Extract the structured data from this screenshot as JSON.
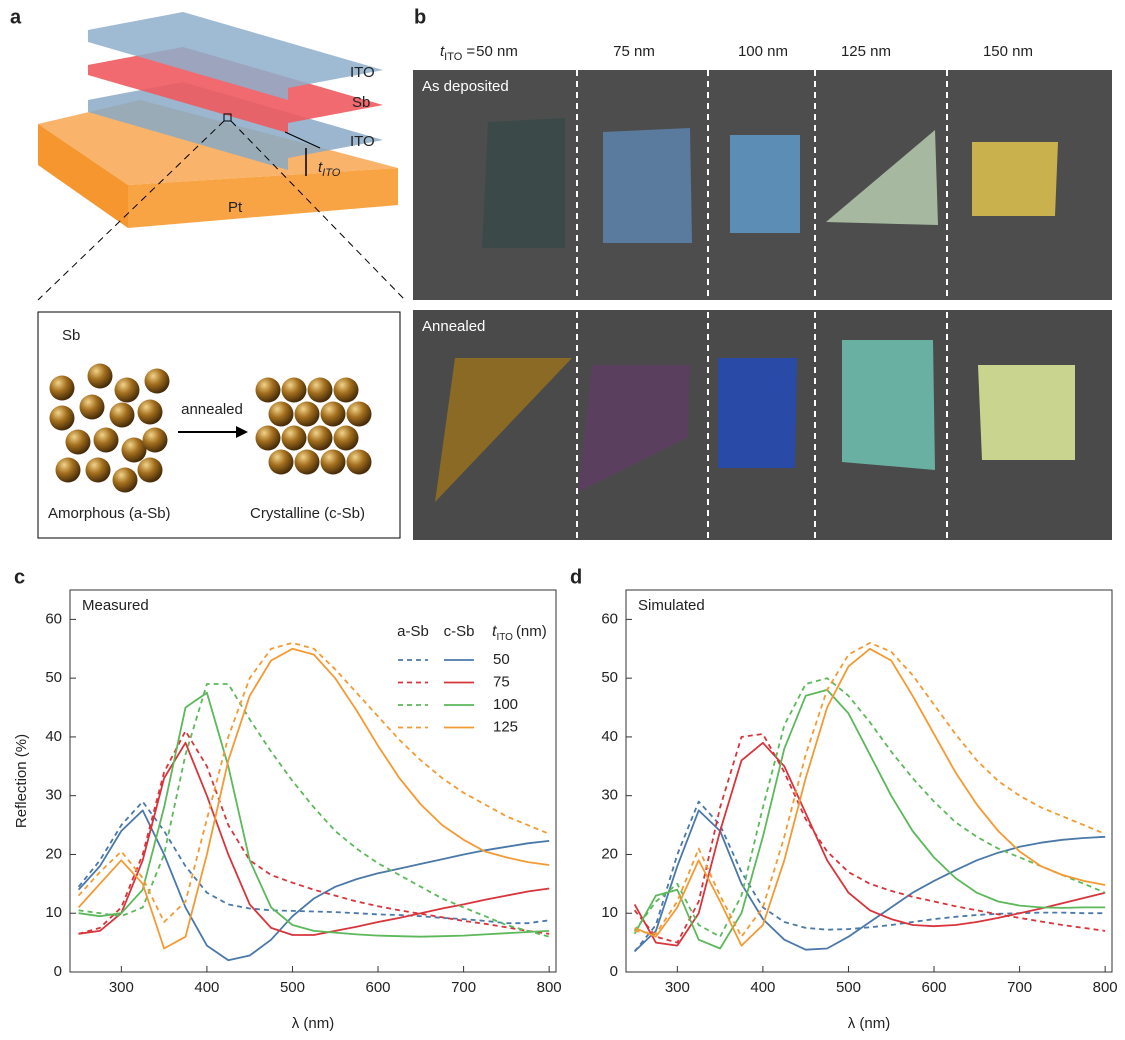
{
  "panel_a": {
    "label": "a",
    "layers": [
      "ITO",
      "Sb",
      "ITO",
      "Pt"
    ],
    "thickness": {
      "symbol": "t",
      "sub": "ITO"
    },
    "inset_title": "Sb",
    "arrow_label": "annealed",
    "left_label": "Amorphous (a-Sb)",
    "right_label": "Crystalline (c-Sb)"
  },
  "panel_b": {
    "label": "b",
    "header": {
      "symbol": "t",
      "sub": "ITO",
      "eq": "="
    },
    "thicknesses": [
      "50 nm",
      "75 nm",
      "100 nm",
      "125 nm",
      "150 nm"
    ],
    "rows": [
      "As deposited",
      "Annealed"
    ]
  },
  "chart_data": [
    {
      "type": "line",
      "panel_label": "c",
      "title": "Measured",
      "xlabel": "λ (nm)",
      "ylabel": "Reflection (%)",
      "xlim": [
        240,
        808
      ],
      "ylim": [
        0,
        65
      ],
      "xticks": [
        300,
        400,
        500,
        600,
        700,
        800
      ],
      "yticks": [
        0,
        10,
        20,
        30,
        40,
        50,
        60
      ],
      "legend": {
        "columns": [
          "a-Sb",
          "c-Sb"
        ],
        "title": {
          "symbol": "t",
          "sub": "ITO",
          "unit": "(nm)"
        },
        "rows": [
          "50",
          "75",
          "100",
          "125"
        ]
      },
      "x": [
        250,
        275,
        300,
        325,
        350,
        375,
        400,
        425,
        450,
        475,
        500,
        525,
        550,
        575,
        600,
        625,
        650,
        675,
        700,
        725,
        750,
        775,
        800
      ],
      "series": [
        {
          "color": "#4a78a8",
          "dash": true,
          "values": [
            14.5,
            19,
            25,
            29,
            24,
            18,
            13.5,
            11.5,
            10.8,
            10.5,
            10.4,
            10.3,
            10.2,
            10,
            9.8,
            9.7,
            9.5,
            9.2,
            9,
            8.7,
            8.3,
            8.3,
            8.8
          ]
        },
        {
          "color": "#4a78a8",
          "dash": false,
          "values": [
            14,
            18,
            24,
            27.5,
            20,
            11,
            4.5,
            2,
            2.8,
            5.5,
            9.5,
            12.5,
            14.5,
            15.8,
            16.8,
            17.6,
            18.4,
            19.2,
            20,
            20.7,
            21.3,
            21.9,
            22.3
          ]
        },
        {
          "color": "#d8343c",
          "dash": true,
          "values": [
            6.5,
            7.5,
            11,
            20,
            34,
            41,
            35,
            25,
            19,
            16.5,
            15.2,
            14,
            13,
            12,
            11.2,
            10.5,
            9.9,
            9.3,
            8.7,
            8.2,
            7.6,
            7,
            6.5
          ]
        },
        {
          "color": "#d8343c",
          "dash": false,
          "values": [
            6.5,
            7,
            10,
            19,
            33,
            39,
            30,
            20,
            11.5,
            7.5,
            6.3,
            6.3,
            7,
            7.7,
            8.5,
            9.2,
            10,
            10.8,
            11.5,
            12.3,
            13,
            13.7,
            14.2
          ]
        },
        {
          "color": "#5cb85a",
          "dash": true,
          "values": [
            10.5,
            10,
            9.5,
            11,
            20,
            37,
            49,
            49,
            43,
            37.5,
            32.5,
            28,
            24,
            21,
            18.5,
            16.5,
            14.5,
            12.5,
            11,
            9.5,
            8,
            7,
            6
          ]
        },
        {
          "color": "#5cb85a",
          "dash": false,
          "values": [
            10,
            9.5,
            10,
            14,
            28,
            45,
            47.5,
            35,
            19,
            11,
            8,
            7,
            6.7,
            6.4,
            6.2,
            6.1,
            6,
            6.1,
            6.2,
            6.4,
            6.6,
            6.8,
            7
          ]
        },
        {
          "color": "#f39a33",
          "dash": true,
          "values": [
            13,
            17,
            20.5,
            16,
            8.5,
            12,
            26,
            40,
            50,
            55,
            56,
            55,
            51.5,
            47.5,
            43.5,
            39.5,
            36,
            33,
            30.5,
            28.5,
            26.5,
            25,
            23.5
          ]
        },
        {
          "color": "#f39a33",
          "dash": false,
          "values": [
            11,
            15,
            19,
            15,
            4,
            6,
            20,
            36,
            47,
            53,
            55,
            54,
            50,
            44.5,
            38.5,
            33,
            28.5,
            25,
            22.5,
            20.5,
            19.5,
            18.7,
            18.2
          ]
        }
      ]
    },
    {
      "type": "line",
      "panel_label": "d",
      "title": "Simulated",
      "xlabel": "λ (nm)",
      "xlim": [
        240,
        808
      ],
      "ylim": [
        0,
        65
      ],
      "xticks": [
        300,
        400,
        500,
        600,
        700,
        800
      ],
      "yticks": [
        0,
        10,
        20,
        30,
        40,
        50,
        60
      ],
      "x": [
        250,
        275,
        300,
        325,
        350,
        375,
        400,
        425,
        450,
        475,
        500,
        525,
        550,
        575,
        600,
        625,
        650,
        675,
        700,
        725,
        750,
        775,
        800
      ],
      "series": [
        {
          "color": "#4a78a8",
          "dash": true,
          "values": [
            3.5,
            8,
            20,
            29,
            25,
            17,
            11,
            8.5,
            7.5,
            7.2,
            7.3,
            7.6,
            8,
            8.5,
            9,
            9.4,
            9.7,
            9.9,
            10,
            10.1,
            10.1,
            10,
            10
          ]
        },
        {
          "color": "#4a78a8",
          "dash": false,
          "values": [
            3.5,
            7,
            18,
            27.5,
            24,
            15,
            9,
            5.5,
            3.8,
            4,
            6,
            8.5,
            11,
            13.5,
            15.5,
            17.3,
            19,
            20.3,
            21.3,
            22,
            22.5,
            22.8,
            23
          ]
        },
        {
          "color": "#d8343c",
          "dash": true,
          "values": [
            10.5,
            6,
            5,
            12,
            28,
            40,
            40.5,
            34,
            26,
            20.5,
            17,
            15,
            13.8,
            12.8,
            12,
            11.2,
            10.5,
            9.8,
            9.2,
            8.6,
            8,
            7.5,
            7
          ]
        },
        {
          "color": "#d8343c",
          "dash": false,
          "values": [
            11.5,
            5,
            4.5,
            10,
            24,
            36,
            39,
            35,
            27,
            19,
            13.5,
            10.5,
            9,
            8,
            7.8,
            8,
            8.5,
            9.2,
            10,
            10.8,
            11.7,
            12.6,
            13.5
          ]
        },
        {
          "color": "#5cb85a",
          "dash": true,
          "values": [
            7,
            12,
            15,
            8,
            6,
            13,
            28,
            42,
            49,
            50,
            47,
            42.5,
            37.5,
            33,
            29,
            25.5,
            23,
            21,
            19.5,
            18,
            16.5,
            15,
            13.5
          ]
        },
        {
          "color": "#5cb85a",
          "dash": false,
          "values": [
            6.5,
            13,
            14,
            5.5,
            4,
            10,
            23,
            38,
            47,
            48,
            44,
            37,
            30,
            24,
            19.5,
            16,
            13.5,
            12,
            11.3,
            11,
            10.9,
            11,
            11
          ]
        },
        {
          "color": "#f39a33",
          "dash": true,
          "values": [
            7,
            6.5,
            12,
            21,
            13,
            6,
            11,
            23,
            37,
            48,
            54,
            56,
            54.5,
            50.5,
            45.5,
            40.5,
            36,
            32.5,
            30,
            28,
            26.5,
            25,
            23.5
          ]
        },
        {
          "color": "#f39a33",
          "dash": false,
          "values": [
            7.5,
            6,
            11,
            19,
            12,
            4.5,
            8,
            19,
            33,
            45,
            52,
            55,
            53,
            47,
            40.5,
            34,
            28.5,
            24,
            20.5,
            18,
            16.5,
            15.5,
            14.8
          ]
        }
      ]
    }
  ]
}
